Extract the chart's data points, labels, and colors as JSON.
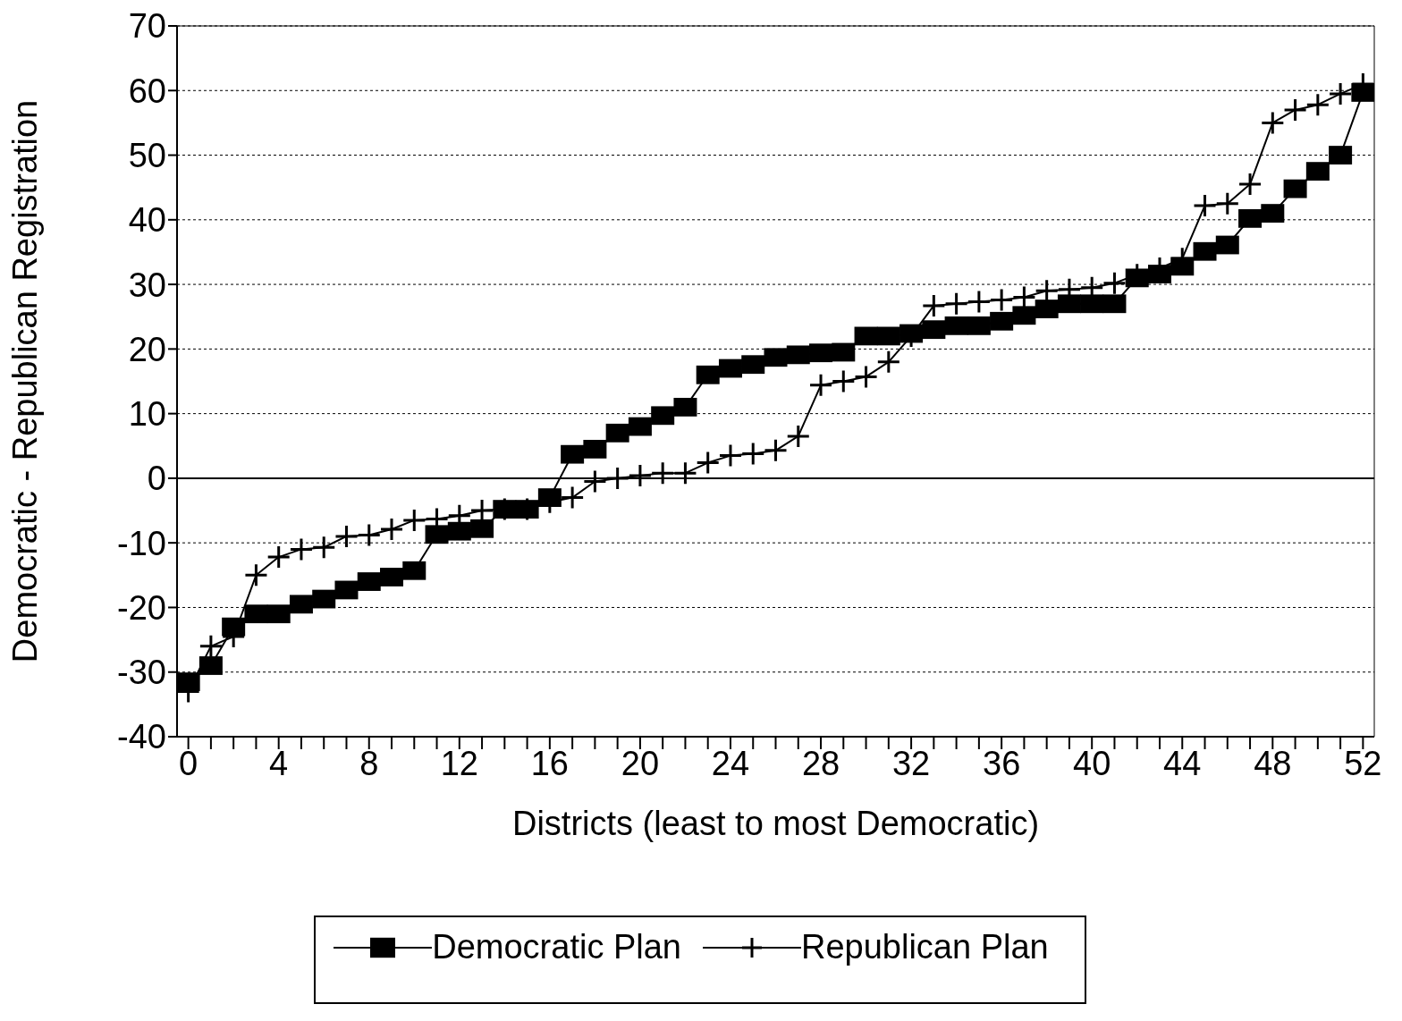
{
  "chart_data": {
    "type": "line",
    "xlabel": "Districts (least to most Democratic)",
    "ylabel": "Democratic - Republican Registration",
    "x": [
      0,
      1,
      2,
      3,
      4,
      5,
      6,
      7,
      8,
      9,
      10,
      11,
      12,
      13,
      14,
      15,
      16,
      17,
      18,
      19,
      20,
      21,
      22,
      23,
      24,
      25,
      26,
      27,
      28,
      29,
      30,
      31,
      32,
      33,
      34,
      35,
      36,
      37,
      38,
      39,
      40,
      41,
      42,
      43,
      44,
      45,
      46,
      47,
      48,
      49,
      50,
      51,
      52
    ],
    "series": [
      {
        "name": "Democratic Plan",
        "color": "#000000",
        "marker": "square",
        "values": [
          -31.5,
          -29,
          -23,
          -21,
          -21,
          -19.5,
          -18.7,
          -17.3,
          -16,
          -15.3,
          -14.3,
          -8.7,
          -8.2,
          -7.8,
          -4.8,
          -4.8,
          -3,
          3.7,
          4.5,
          7,
          8,
          9.7,
          11,
          16,
          17,
          17.6,
          18.7,
          19.1,
          19.4,
          19.5,
          22,
          22,
          22.4,
          23,
          23.6,
          23.6,
          24.3,
          25.2,
          26.2,
          27,
          27,
          27,
          31,
          31.6,
          32.8,
          35.1,
          36.1,
          40.2,
          41,
          44.8,
          47.5,
          50,
          59.7
        ]
      },
      {
        "name": "Republican Plan",
        "color": "#000000",
        "marker": "cross",
        "values": [
          -33,
          -26,
          -24.5,
          -15,
          -12.2,
          -11,
          -10.7,
          -9,
          -8.8,
          -7.9,
          -6.5,
          -6.3,
          -5.8,
          -5,
          -4.8,
          -4.8,
          -3.7,
          -3,
          -0.5,
          0,
          0.4,
          0.8,
          0.8,
          2.4,
          3.5,
          3.8,
          4.3,
          6.5,
          14.4,
          15,
          15.7,
          18,
          22,
          26.7,
          27,
          27.3,
          27.6,
          28,
          29,
          29.2,
          29.5,
          30.2,
          31.5,
          32.5,
          34,
          42.2,
          42.5,
          45.5,
          55,
          57,
          57.8,
          59.5,
          61
        ]
      }
    ],
    "xlim": [
      -0.5,
      52.5
    ],
    "xticks": [
      0,
      {
        "value": 1,
        "label": null
      },
      {
        "value": 2,
        "label": null
      },
      {
        "value": 3,
        "label": null
      },
      4,
      {
        "value": 5,
        "label": null
      },
      {
        "value": 6,
        "label": null
      },
      {
        "value": 7,
        "label": null
      },
      8,
      {
        "value": 9,
        "label": null
      },
      {
        "value": 10,
        "label": null
      },
      {
        "value": 11,
        "label": null
      },
      12,
      {
        "value": 13,
        "label": null
      },
      {
        "value": 14,
        "label": null
      },
      {
        "value": 15,
        "label": null
      },
      16,
      {
        "value": 17,
        "label": null
      },
      {
        "value": 18,
        "label": null
      },
      {
        "value": 19,
        "label": null
      },
      20,
      {
        "value": 21,
        "label": null
      },
      {
        "value": 22,
        "label": null
      },
      {
        "value": 23,
        "label": null
      },
      24,
      {
        "value": 25,
        "label": null
      },
      {
        "value": 26,
        "label": null
      },
      {
        "value": 27,
        "label": null
      },
      28,
      {
        "value": 29,
        "label": null
      },
      {
        "value": 30,
        "label": null
      },
      {
        "value": 31,
        "label": null
      },
      32,
      {
        "value": 33,
        "label": null
      },
      {
        "value": 34,
        "label": null
      },
      {
        "value": 35,
        "label": null
      },
      36,
      {
        "value": 37,
        "label": null
      },
      {
        "value": 38,
        "label": null
      },
      {
        "value": 39,
        "label": null
      },
      40,
      {
        "value": 41,
        "label": null
      },
      {
        "value": 42,
        "label": null
      },
      {
        "value": 43,
        "label": null
      },
      44,
      {
        "value": 45,
        "label": null
      },
      {
        "value": 46,
        "label": null
      },
      {
        "value": 47,
        "label": null
      },
      48,
      {
        "value": 49,
        "label": null
      },
      {
        "value": 50,
        "label": null
      },
      {
        "value": 51,
        "label": null
      },
      52
    ],
    "ylim": [
      -40,
      70
    ],
    "yticks": [
      -40,
      -30,
      -20,
      -10,
      0,
      10,
      20,
      30,
      40,
      50,
      60,
      70
    ],
    "grid": "y",
    "legend": "bottom",
    "line_style": "solid",
    "ref_lines": [
      {
        "axis": "y",
        "value": 0,
        "color": "#000000",
        "line_style": "solid"
      }
    ]
  }
}
